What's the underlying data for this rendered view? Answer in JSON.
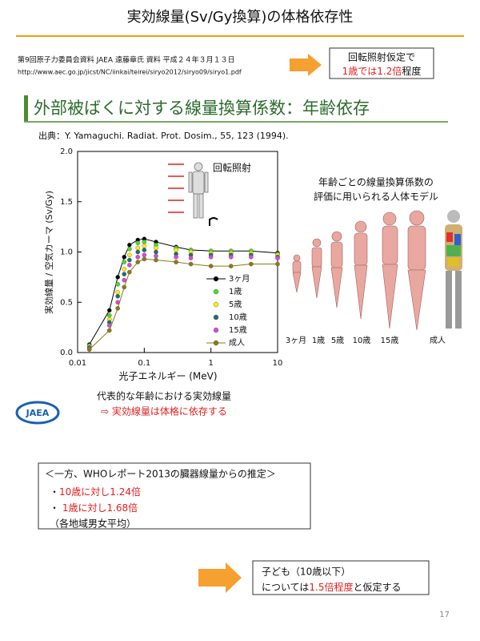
{
  "header": {
    "title": "実効線量(Sv/Gy換算)の体格依存性"
  },
  "source": {
    "line1": "第9回原子力委員会資料  JAEA 遠藤章氏  資料   平成２４年３月１３日",
    "url": "http://www.aec.go.jp/jicst/NC/iinkai/teirei/siryo2012/siryo09/siryo1.pdf"
  },
  "callout": {
    "line1": "回転照射仮定で",
    "line2_red": "1歳では1.2倍",
    "line2_rest": "程度"
  },
  "section": {
    "heading": "外部被ばくに対する線量換算係数：年齢依存",
    "citation": "出典：Y. Yamaguchi. Radiat. Prot. Dosim., 55, 123 (1994)."
  },
  "chart_data": {
    "type": "scatter",
    "annotation": "回転照射",
    "xlabel": "光子エネルギー (MeV)",
    "ylabel": "実効線量 / 空気カーマ (Sv/Gy)",
    "xscale": "log",
    "x": [
      0.015,
      0.03,
      0.04,
      0.05,
      0.06,
      0.08,
      0.1,
      0.15,
      0.3,
      0.5,
      1,
      2,
      4,
      10
    ],
    "xlim": [
      0.01,
      10
    ],
    "xticks": [
      0.01,
      0.1,
      1,
      10
    ],
    "ylim": [
      0,
      2
    ],
    "yticks": [
      {
        "value": 0,
        "label": "0.0"
      },
      0.5,
      {
        "value": 1,
        "label": "1.0"
      },
      1.5,
      {
        "value": 2,
        "label": "2.0"
      }
    ],
    "series": [
      {
        "name": "3ヶ月",
        "color": "#000000",
        "line": true,
        "values": [
          0.08,
          0.42,
          0.75,
          0.95,
          1.07,
          1.12,
          1.13,
          1.1,
          1.05,
          1.02,
          1.01,
          1.01,
          1.01,
          0.99
        ]
      },
      {
        "name": "1歳",
        "color": "#44dd22",
        "line": false,
        "values": [
          0.07,
          0.37,
          0.68,
          0.9,
          1.03,
          1.09,
          1.1,
          1.07,
          1.04,
          1.02,
          1.01,
          1.01,
          1.01,
          0.98
        ]
      },
      {
        "name": "5歳",
        "color": "#ffee00",
        "line": false,
        "values": [
          0.06,
          0.33,
          0.6,
          0.83,
          0.97,
          1.04,
          1.06,
          1.04,
          1.02,
          1.0,
          0.99,
          0.99,
          0.99,
          0.97
        ]
      },
      {
        "name": "10歳",
        "color": "#1a6e6e",
        "line": false,
        "values": [
          0.05,
          0.3,
          0.56,
          0.78,
          0.92,
          1.0,
          1.02,
          1.0,
          0.98,
          0.97,
          0.97,
          0.97,
          0.97,
          0.95
        ]
      },
      {
        "name": "15歳",
        "color": "#dd44dd",
        "line": false,
        "values": [
          0.04,
          0.27,
          0.5,
          0.72,
          0.87,
          0.95,
          0.97,
          0.96,
          0.95,
          0.94,
          0.95,
          0.95,
          0.95,
          0.94
        ]
      },
      {
        "name": "成人",
        "color": "#8a7a10",
        "line": true,
        "values": [
          0.03,
          0.22,
          0.44,
          0.65,
          0.8,
          0.9,
          0.93,
          0.92,
          0.9,
          0.88,
          0.86,
          0.86,
          0.88,
          0.88
        ]
      }
    ]
  },
  "models": {
    "caption1": "年齢ごとの線量換算係数の",
    "caption2": "評価に用いられる人体モデル",
    "labels": [
      "3ヶ月",
      "1歳",
      "5歳",
      "10歳",
      "15歳",
      "成人"
    ]
  },
  "summary": {
    "logo": "JAEA",
    "line1": "代表的な年齢における実効線量",
    "line2": "⇨ 実効線量は体格に依存する"
  },
  "who": {
    "title": "＜一方、WHOレポート2013の臓器線量からの推定＞",
    "items": [
      {
        "bullet": "・",
        "text": "10歳に対し1.24倍"
      },
      {
        "bullet": "・ ",
        "text": "1歳に対し1.68倍"
      }
    ],
    "note": "（各地域男女平均）"
  },
  "conclusion": {
    "line1": "子ども（10歳以下）",
    "line2_a": "については",
    "line2_red": "1.5倍程度",
    "line2_b": "と仮定する"
  },
  "page_number": "17"
}
